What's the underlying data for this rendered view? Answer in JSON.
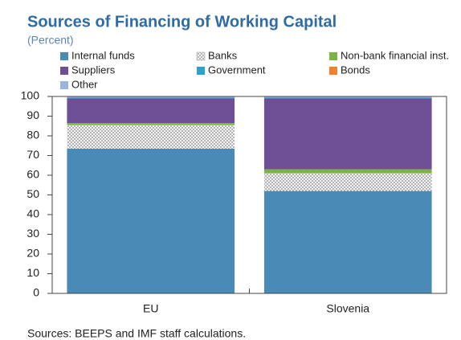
{
  "chart_data": {
    "type": "stacked_bar",
    "title": "Sources of Financing of Working Capital",
    "subtitle": "(Percent)",
    "source": "Sources: BEEPS and IMF staff calculations.",
    "categories": [
      "EU",
      "Slovenia"
    ],
    "series": [
      {
        "name": "Internal funds",
        "color": "#4a8ab6",
        "values": [
          73.5,
          52
        ]
      },
      {
        "name": "Banks",
        "color": "#bdbdbd",
        "values": [
          12,
          9
        ]
      },
      {
        "name": "Non-bank financial inst.",
        "color": "#7cb342",
        "values": [
          1,
          2
        ]
      },
      {
        "name": "Suppliers",
        "color": "#6e4f96",
        "values": [
          12.5,
          36
        ]
      },
      {
        "name": "Government",
        "color": "#2aa1d3",
        "values": [
          0.5,
          0.5
        ]
      },
      {
        "name": "Bonds",
        "color": "#f0822f",
        "values": [
          0,
          0
        ]
      },
      {
        "name": "Other",
        "color": "#9ab6e0",
        "values": [
          0.5,
          0.5
        ]
      }
    ],
    "ylim": [
      0,
      100
    ],
    "yticks": [
      0,
      10,
      20,
      30,
      40,
      50,
      60,
      70,
      80,
      90,
      100
    ]
  }
}
